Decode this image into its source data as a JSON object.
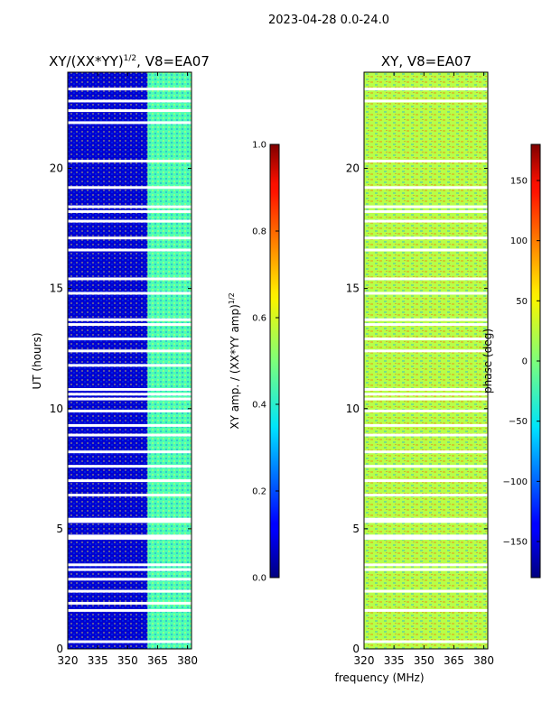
{
  "suptitle": "2023-04-28 0.0-24.0",
  "shared_xlabel": "frequency (MHz)",
  "chart_data": [
    {
      "type": "heatmap",
      "title_main": "XY/(XX*YY)",
      "title_sup": "1/2",
      "title_rest": ", V8=EA07",
      "xlabel": "",
      "ylabel": "UT (hours)",
      "xlim": [
        320,
        382
      ],
      "ylim": [
        0,
        24
      ],
      "x_ticks": [
        320,
        335,
        350,
        365,
        380
      ],
      "y_ticks": [
        0,
        5,
        10,
        15,
        20
      ],
      "colormap": "jet",
      "colorbar": {
        "label_main": "XY amp. / (XX*YY amp)",
        "label_sup": "1/2",
        "range": [
          0.0,
          1.0
        ],
        "ticks": [
          "0.0",
          "0.2",
          "0.4",
          "0.6",
          "0.8",
          "1.0"
        ]
      },
      "bands": [
        {
          "from_mhz": 320,
          "to_mhz": 360,
          "value": 0.08
        },
        {
          "from_mhz": 360,
          "to_mhz": 382,
          "value": 0.45
        }
      ],
      "blank_rows_hours": [
        23.3,
        22.8,
        22.4,
        21.9,
        20.3,
        19.2,
        18.4,
        18.2,
        17.8,
        17.1,
        16.6,
        15.4,
        14.8,
        13.7,
        13.5,
        12.9,
        12.4,
        11.8,
        10.8,
        10.6,
        10.4,
        9.9,
        9.3,
        8.9,
        8.2,
        7.6,
        7.0,
        6.4,
        5.4,
        5.3,
        4.7,
        4.6,
        3.5,
        3.3,
        2.9,
        2.4,
        1.9,
        1.6,
        0.3
      ]
    },
    {
      "type": "heatmap",
      "title": "XY, V8=EA07",
      "xlabel": "",
      "ylabel": "",
      "xlim": [
        320,
        382
      ],
      "ylim": [
        0,
        24
      ],
      "x_ticks": [
        320,
        335,
        350,
        365,
        380
      ],
      "y_ticks": [
        0,
        5,
        10,
        15,
        20
      ],
      "colormap": "jet",
      "colorbar": {
        "label": "phase (deg)",
        "range": [
          -180,
          180
        ],
        "ticks": [
          "−150",
          "−100",
          "−50",
          "0",
          "50",
          "100",
          "150"
        ]
      },
      "bands": [
        {
          "from_mhz": 320,
          "to_mhz": 382,
          "value": 20
        }
      ],
      "blank_rows_hours": [
        23.3,
        22.8,
        20.3,
        19.2,
        18.4,
        18.2,
        17.8,
        17.1,
        16.6,
        15.4,
        14.8,
        13.7,
        13.5,
        12.9,
        12.4,
        10.8,
        10.6,
        10.4,
        9.9,
        9.3,
        8.9,
        8.2,
        7.6,
        7.0,
        6.4,
        5.4,
        5.3,
        4.7,
        4.6,
        3.5,
        3.3,
        2.4,
        1.6,
        0.3
      ]
    }
  ]
}
